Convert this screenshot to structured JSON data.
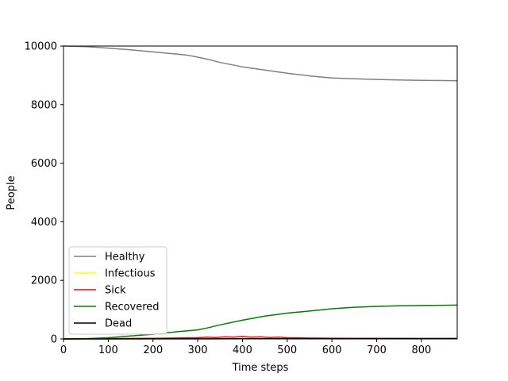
{
  "chart_data": {
    "type": "line",
    "title": "",
    "xlabel": "Time steps",
    "ylabel": "People",
    "xlim": [
      0,
      880
    ],
    "ylim": [
      0,
      10000
    ],
    "xticks": [
      0,
      100,
      200,
      300,
      400,
      500,
      600,
      700,
      800
    ],
    "yticks": [
      0,
      2000,
      4000,
      6000,
      8000,
      10000
    ],
    "grid": false,
    "legend_position": "lower-left",
    "series": [
      {
        "name": "Healthy",
        "color": "#808080",
        "x": [
          0,
          50,
          100,
          150,
          200,
          250,
          280,
          300,
          330,
          350,
          400,
          450,
          500,
          550,
          600,
          650,
          700,
          750,
          800,
          850,
          880
        ],
        "y": [
          10000,
          9980,
          9930,
          9870,
          9800,
          9730,
          9680,
          9620,
          9520,
          9440,
          9290,
          9180,
          9070,
          8980,
          8910,
          8880,
          8860,
          8840,
          8830,
          8820,
          8815
        ]
      },
      {
        "name": "Infectious",
        "color": "#ffff00",
        "x": [
          0,
          100,
          200,
          300,
          400,
          500,
          600,
          700,
          800,
          880
        ],
        "y": [
          0,
          2,
          4,
          6,
          8,
          6,
          4,
          3,
          2,
          2
        ]
      },
      {
        "name": "Sick",
        "color": "#ff0000",
        "x": [
          0,
          50,
          100,
          150,
          200,
          250,
          300,
          320,
          340,
          360,
          380,
          400,
          420,
          440,
          460,
          480,
          500,
          550,
          600,
          650,
          700,
          800,
          880
        ],
        "y": [
          0,
          5,
          10,
          15,
          20,
          30,
          40,
          60,
          50,
          70,
          60,
          80,
          60,
          70,
          50,
          60,
          40,
          30,
          25,
          20,
          20,
          15,
          15
        ]
      },
      {
        "name": "Recovered",
        "color": "#008000",
        "x": [
          0,
          50,
          100,
          150,
          200,
          250,
          300,
          320,
          350,
          400,
          450,
          500,
          550,
          600,
          650,
          700,
          750,
          800,
          850,
          880
        ],
        "y": [
          0,
          10,
          40,
          100,
          160,
          240,
          310,
          370,
          480,
          640,
          780,
          880,
          950,
          1030,
          1080,
          1110,
          1130,
          1140,
          1150,
          1155
        ]
      },
      {
        "name": "Dead",
        "color": "#000000",
        "x": [
          0,
          200,
          400,
          600,
          880
        ],
        "y": [
          0,
          2,
          5,
          8,
          10
        ]
      }
    ]
  }
}
